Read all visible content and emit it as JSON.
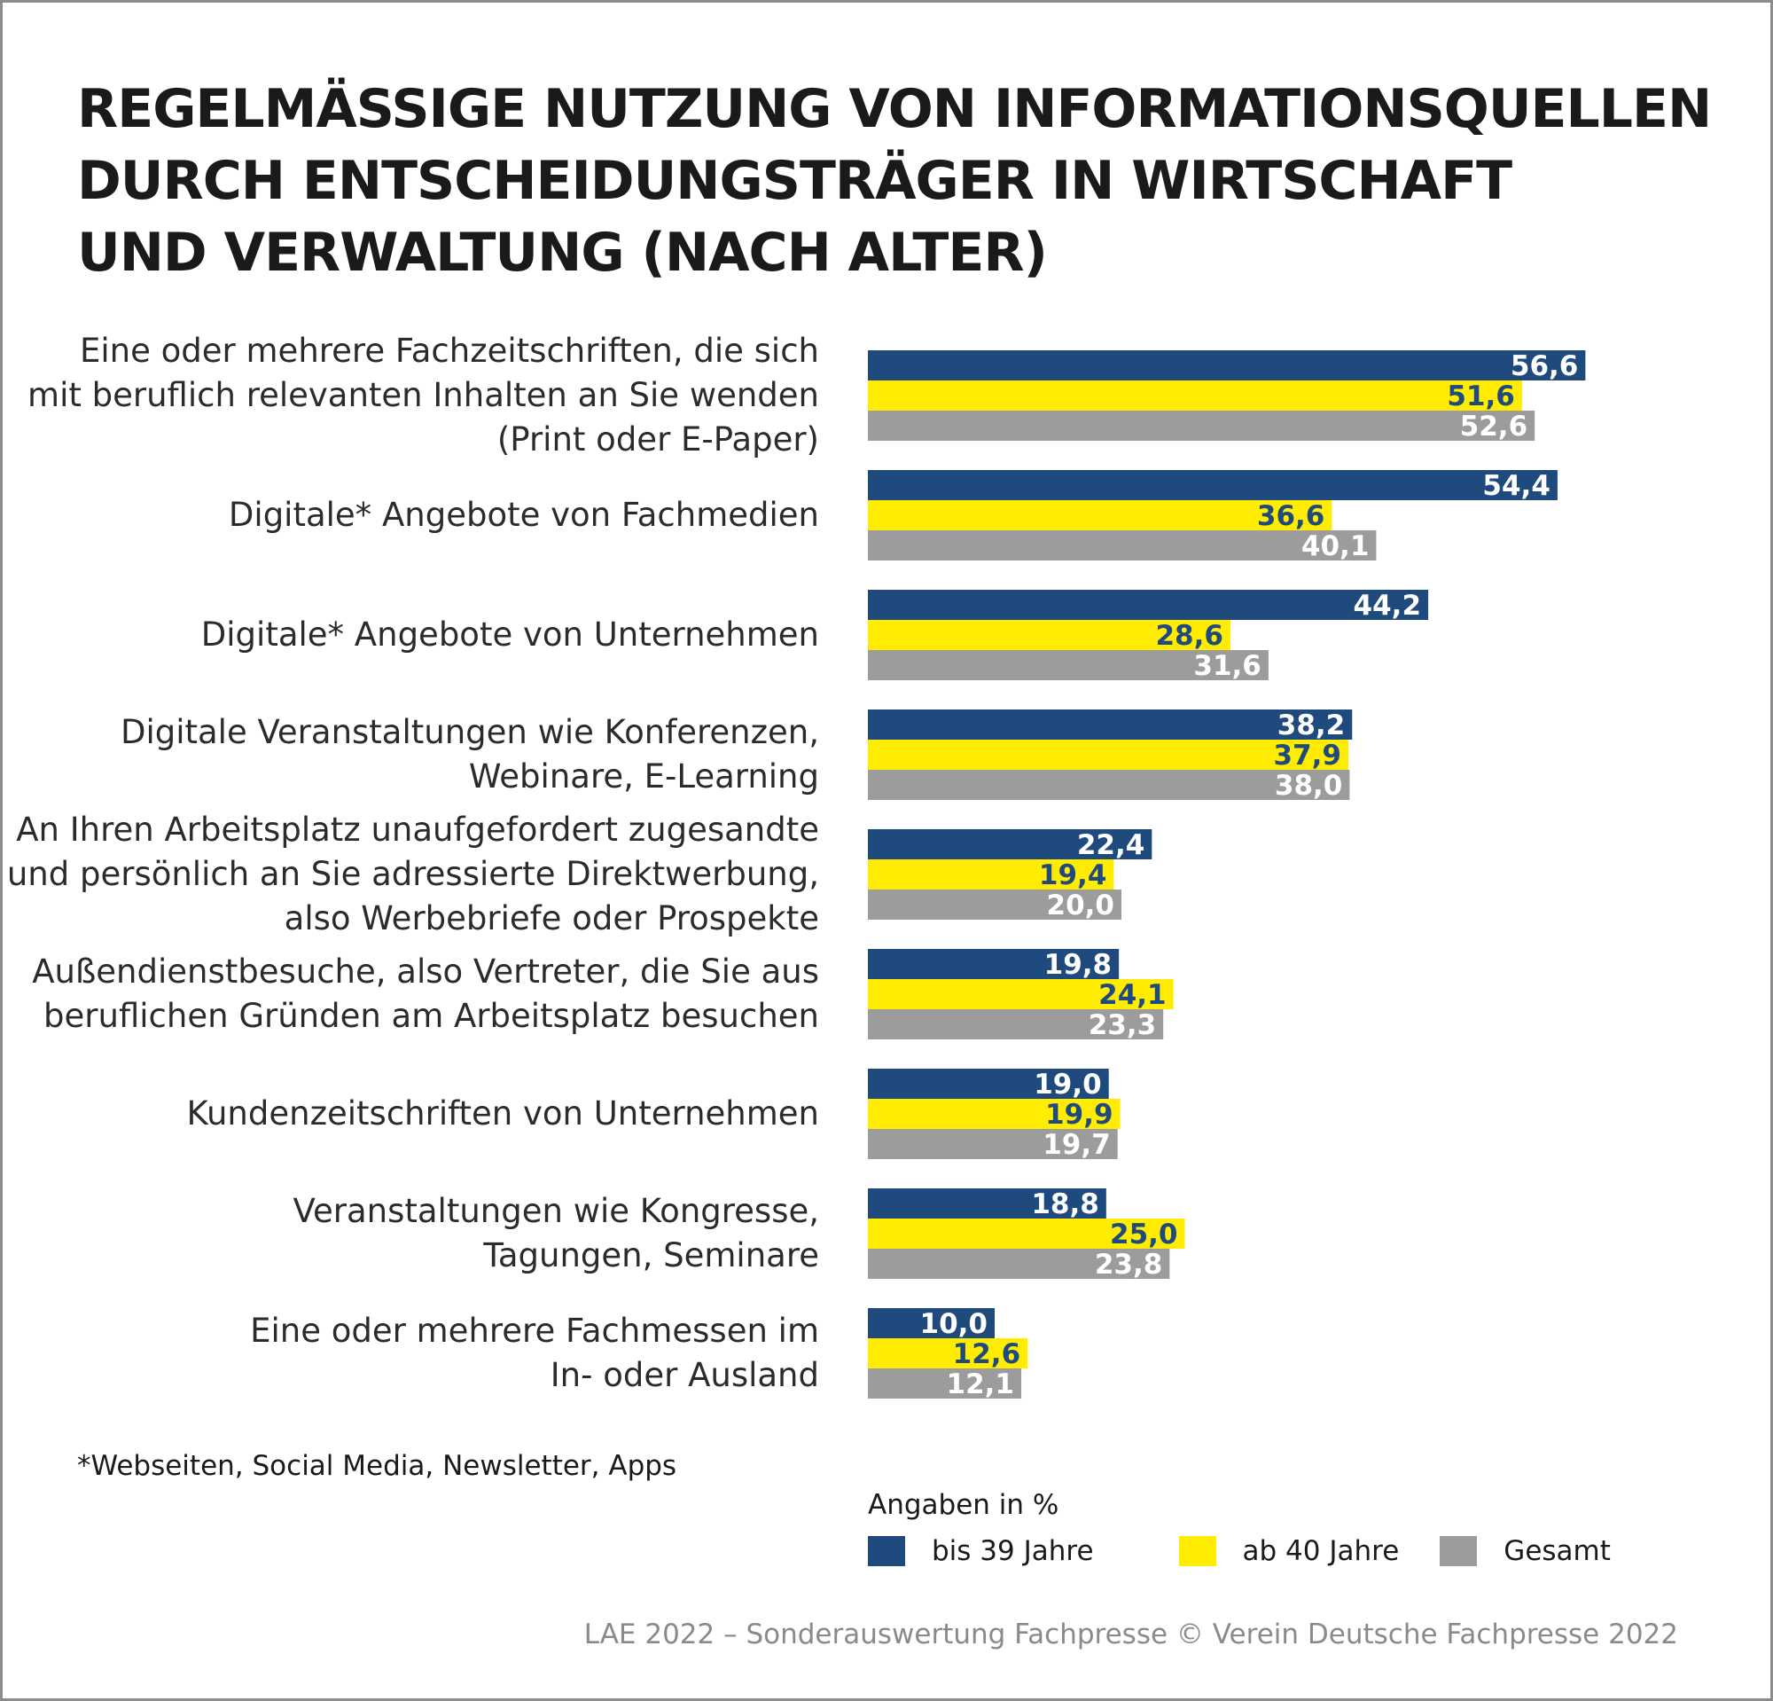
{
  "title_lines": [
    "REGELMÄSSIGE NUTZUNG VON INFORMATIONSQUELLEN",
    "DURCH ENTSCHEIDUNGSTRÄGER IN WIRTSCHAFT",
    "UND VERWALTUNG (NACH ALTER)"
  ],
  "footnote": "*Webseiten, Social Media, Newsletter, Apps",
  "unit_note": "Angaben in %",
  "source": "LAE 2022 – Sonderauswertung Fachpresse © Verein Deutsche Fachpresse 2022",
  "colors": {
    "bis_39": "#1f4a7d",
    "ab_40": "#ffec00",
    "gesamt": "#9c9c9c"
  },
  "chart_data": {
    "type": "bar",
    "orientation": "horizontal",
    "title": "REGELMÄSSIGE NUTZUNG VON INFORMATIONSQUELLEN DURCH ENTSCHEIDUNGSTRÄGER IN WIRTSCHAFT UND VERWALTUNG (NACH ALTER)",
    "unit": "Angaben in %",
    "decimal_separator": ",",
    "categories": [
      [
        "Eine oder mehrere Fachzeitschriften, die sich",
        "mit beruflich relevanten Inhalten an Sie wenden",
        "(Print oder E-Paper)"
      ],
      [
        "Digitale* Angebote von Fachmedien"
      ],
      [
        "Digitale* Angebote von Unternehmen"
      ],
      [
        "Digitale Veranstaltungen wie Konferenzen,",
        "Webinare, E-Learning"
      ],
      [
        "An Ihren Arbeitsplatz unaufgefordert zugesandte",
        "und persönlich an Sie adressierte Direktwerbung,",
        "also Werbebriefe oder Prospekte"
      ],
      [
        "Außendienstbesuche, also Vertreter, die Sie aus",
        "beruflichen Gründen am Arbeitsplatz besuchen"
      ],
      [
        "Kundenzeitschriften von Unternehmen"
      ],
      [
        "Veranstaltungen wie Kongresse,",
        "Tagungen, Seminare"
      ],
      [
        "Eine oder mehrere Fachmessen im",
        "In- oder Ausland"
      ]
    ],
    "series": [
      {
        "name": "bis 39 Jahre",
        "color": "#1f4a7d",
        "label_color": "#ffffff",
        "values": [
          56.6,
          54.4,
          44.2,
          38.2,
          22.4,
          19.8,
          19.0,
          18.8,
          10.0
        ],
        "labels": [
          "56,6",
          "54,4",
          "44,2",
          "38,2",
          "22,4",
          "19,8",
          "19,0",
          "18,8",
          "10,0"
        ]
      },
      {
        "name": "ab 40 Jahre",
        "color": "#ffec00",
        "label_color": "#1f4a7d",
        "values": [
          51.6,
          36.6,
          28.6,
          37.9,
          19.4,
          24.1,
          19.9,
          25.0,
          12.6
        ],
        "labels": [
          "51,6",
          "36,6",
          "28,6",
          "37,9",
          "19,4",
          "24,1",
          "19,9",
          "25,0",
          "12,6"
        ]
      },
      {
        "name": "Gesamt",
        "color": "#9c9c9c",
        "label_color": "#ffffff",
        "values": [
          52.6,
          40.1,
          31.6,
          38.0,
          20.0,
          23.3,
          19.7,
          23.8,
          12.1
        ],
        "labels": [
          "52,6",
          "40,1",
          "31,6",
          "38,0",
          "20,0",
          "23,3",
          "19,7",
          "23,8",
          "12,1"
        ]
      }
    ],
    "legend": [
      "bis 39 Jahre",
      "ab 40 Jahre",
      "Gesamt"
    ],
    "legend_position": "bottom",
    "grid": false,
    "axis_visible": false
  }
}
